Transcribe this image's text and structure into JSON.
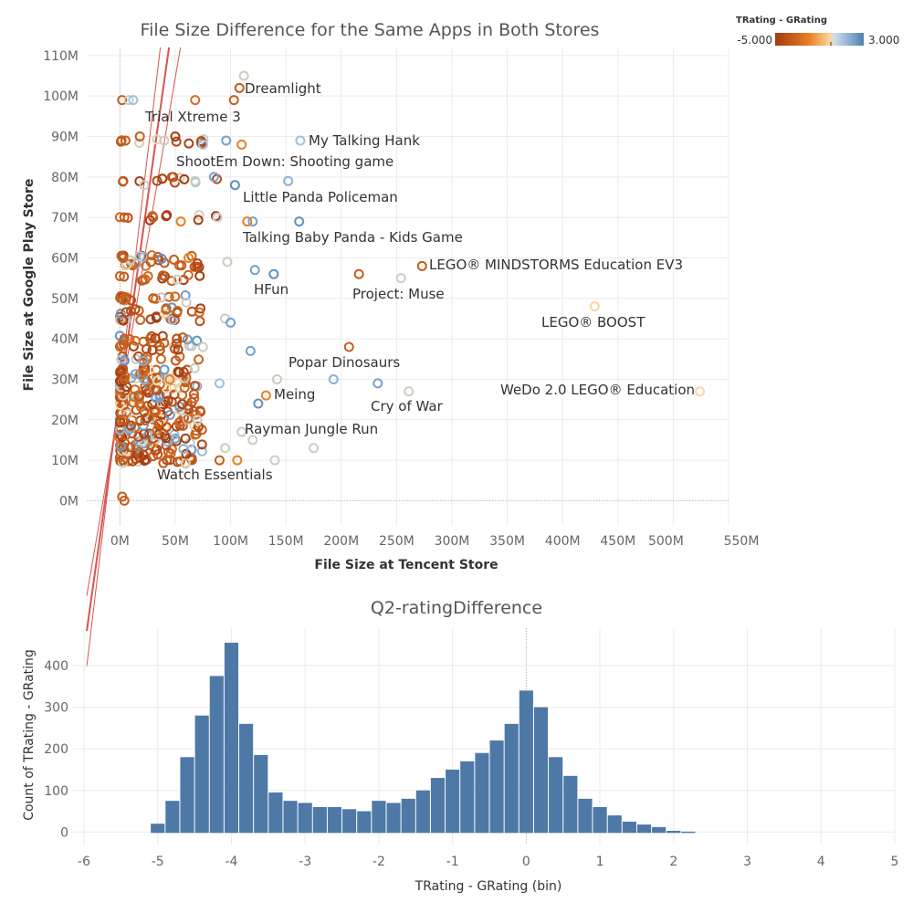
{
  "chart_data": [
    {
      "type": "scatter",
      "title": "File Size Difference for the Same Apps in Both Stores",
      "xlabel": "File Size at Tencent Store",
      "ylabel": "File Size at Google Play Store",
      "xlim": [
        -30,
        550
      ],
      "ylim": [
        -6,
        112
      ],
      "x_ticks": [
        "0M",
        "50M",
        "100M",
        "150M",
        "200M",
        "250M",
        "300M",
        "350M",
        "400M",
        "450M",
        "500M",
        "550M"
      ],
      "x_tick_values": [
        0,
        50,
        100,
        150,
        200,
        250,
        300,
        350,
        400,
        450,
        500,
        550
      ],
      "y_ticks": [
        "0M",
        "10M",
        "20M",
        "30M",
        "40M",
        "50M",
        "60M",
        "70M",
        "80M",
        "90M",
        "100M",
        "110M"
      ],
      "y_tick_values": [
        0,
        10,
        20,
        30,
        40,
        50,
        60,
        70,
        80,
        90,
        100,
        110
      ],
      "grid": true,
      "legend": {
        "title": "TRating - GRating",
        "min_label": "-5.000",
        "max_label": "3.000",
        "min": -5,
        "max": 3,
        "colors": [
          "#a33a12",
          "#e87f24",
          "#fbd6a0",
          "#9dc3e2",
          "#4f7fb1"
        ],
        "placement": "top-right"
      },
      "trend_line": {
        "slope": 1.94,
        "intercept": 26
      },
      "trend_band": {
        "upper": {
          "slope": 2.3,
          "intercept": 28
        },
        "lower": {
          "slope": 1.6,
          "intercept": 24.5
        }
      },
      "annotations": [
        {
          "label": "Dreamlight",
          "x": 108,
          "y": 102,
          "d": -4
        },
        {
          "label": "Trial Xtreme 3",
          "x": 68,
          "y": 99,
          "d": -3.5
        },
        {
          "label": "My Talking Hank",
          "x": 163,
          "y": 89,
          "d": 1
        },
        {
          "label": "ShootEm Down: Shooting game",
          "x": 47,
          "y": 80,
          "d": -4
        },
        {
          "label": "Little Panda Policeman",
          "x": 104,
          "y": 78,
          "d": 2.5
        },
        {
          "label": "Talking Baby Panda - Kids Game",
          "x": 162,
          "y": 69,
          "d": 2.5
        },
        {
          "label": "LEGO® MINDSTORMS Education EV3",
          "x": 273,
          "y": 58,
          "d": -4
        },
        {
          "label": "HFun",
          "x": 139,
          "y": 56,
          "d": 2.5
        },
        {
          "label": "Project: Muse",
          "x": 216,
          "y": 56,
          "d": -4
        },
        {
          "label": "Project: Muse",
          "x": 254,
          "y": 55,
          "d": 0
        },
        {
          "label": "LEGO® BOOST",
          "x": 429,
          "y": 48,
          "d": -1
        },
        {
          "label": "Popar Dinosaurs",
          "x": 207,
          "y": 38,
          "d": -4
        },
        {
          "label": "Meing",
          "x": 132,
          "y": 26,
          "d": -3
        },
        {
          "label": "Cry of War",
          "x": 261,
          "y": 27,
          "d": 0
        },
        {
          "label": "WeDo 2.0 LEGO® Education",
          "x": 524,
          "y": 27,
          "d": -1
        },
        {
          "label": "Rayman Jungle Run",
          "x": 110,
          "y": 17,
          "d": 0
        },
        {
          "label": "Watch Essentials",
          "x": 106,
          "y": 10,
          "d": -3
        }
      ],
      "annotation_labels": [
        {
          "text": "Dreamlight"
        },
        {
          "text": "Trial Xtreme 3"
        },
        {
          "text": "My Talking Hank"
        },
        {
          "text": "ShootEm Down: Shooting game"
        },
        {
          "text": "Little Panda Policeman"
        },
        {
          "text": "Talking Baby Panda - Kids Game"
        },
        {
          "text": "LEGO® MINDSTORMS Education EV3"
        },
        {
          "text": "HFun"
        },
        {
          "text": "Project: Muse"
        },
        {
          "text": "LEGO® BOOST"
        },
        {
          "text": "Popar Dinosaurs"
        },
        {
          "text": "Meing"
        },
        {
          "text": "Cry of War"
        },
        {
          "text": "WeDo 2.0 LEGO® Education"
        },
        {
          "text": "Rayman Jungle Run"
        },
        {
          "text": "Watch Essentials"
        }
      ],
      "extra_points": [
        {
          "x": 2,
          "y": 99,
          "d": -4
        },
        {
          "x": 8,
          "y": 99,
          "d": 0
        },
        {
          "x": 12,
          "y": 99,
          "d": 1
        },
        {
          "x": 103,
          "y": 99,
          "d": -4
        },
        {
          "x": 112,
          "y": 105,
          "d": 0
        },
        {
          "x": 5,
          "y": 89,
          "d": -4
        },
        {
          "x": 18,
          "y": 90,
          "d": -4
        },
        {
          "x": 40,
          "y": 89,
          "d": 0
        },
        {
          "x": 50,
          "y": 90,
          "d": -5
        },
        {
          "x": 75,
          "y": 88,
          "d": 1
        },
        {
          "x": 96,
          "y": 89,
          "d": 2
        },
        {
          "x": 110,
          "y": 88,
          "d": -3
        },
        {
          "x": 3,
          "y": 79,
          "d": -4
        },
        {
          "x": 22,
          "y": 78,
          "d": 0
        },
        {
          "x": 48,
          "y": 80,
          "d": -5
        },
        {
          "x": 68,
          "y": 79,
          "d": 0
        },
        {
          "x": 85,
          "y": 80,
          "d": 2
        },
        {
          "x": 152,
          "y": 79,
          "d": 1.5
        },
        {
          "x": 4,
          "y": 70,
          "d": -4
        },
        {
          "x": 30,
          "y": 70,
          "d": -4
        },
        {
          "x": 55,
          "y": 69,
          "d": -3
        },
        {
          "x": 88,
          "y": 70,
          "d": 0
        },
        {
          "x": 115,
          "y": 69,
          "d": -3
        },
        {
          "x": 120,
          "y": 69,
          "d": 2
        },
        {
          "x": 3,
          "y": 60,
          "d": -4
        },
        {
          "x": 28,
          "y": 59,
          "d": -4
        },
        {
          "x": 62,
          "y": 60,
          "d": -3
        },
        {
          "x": 97,
          "y": 59,
          "d": 0
        },
        {
          "x": 122,
          "y": 57,
          "d": 2
        },
        {
          "x": 5,
          "y": 50,
          "d": -4
        },
        {
          "x": 30,
          "y": 50,
          "d": -4
        },
        {
          "x": 60,
          "y": 49,
          "d": 0
        },
        {
          "x": 95,
          "y": 45,
          "d": 0
        },
        {
          "x": 100,
          "y": 44,
          "d": 2
        },
        {
          "x": 4,
          "y": 40,
          "d": -4
        },
        {
          "x": 40,
          "y": 39,
          "d": -4
        },
        {
          "x": 75,
          "y": 38,
          "d": 0
        },
        {
          "x": 118,
          "y": 37,
          "d": 2
        },
        {
          "x": 193,
          "y": 30,
          "d": 1.5
        },
        {
          "x": 4,
          "y": 30,
          "d": -4
        },
        {
          "x": 45,
          "y": 30,
          "d": -3
        },
        {
          "x": 90,
          "y": 29,
          "d": 1
        },
        {
          "x": 125,
          "y": 24,
          "d": 2.5
        },
        {
          "x": 142,
          "y": 30,
          "d": 0
        },
        {
          "x": 233,
          "y": 29,
          "d": 2
        },
        {
          "x": 3,
          "y": 20,
          "d": -4
        },
        {
          "x": 35,
          "y": 19,
          "d": -4
        },
        {
          "x": 70,
          "y": 20,
          "d": 0
        },
        {
          "x": 95,
          "y": 13,
          "d": 0
        },
        {
          "x": 120,
          "y": 15,
          "d": 0
        },
        {
          "x": 175,
          "y": 13,
          "d": 0
        },
        {
          "x": 3,
          "y": 10,
          "d": -4
        },
        {
          "x": 30,
          "y": 11,
          "d": -4
        },
        {
          "x": 90,
          "y": 10,
          "d": -4
        },
        {
          "x": 140,
          "y": 10,
          "d": 0
        },
        {
          "x": 2,
          "y": 1,
          "d": -4
        },
        {
          "x": 4,
          "y": 0,
          "d": -4
        }
      ]
    },
    {
      "type": "bar",
      "title": "Q2-ratingDifference",
      "xlabel": "TRating - GRating (bin)",
      "ylabel": "Count of TRating - GRating",
      "bin_start": -5.1,
      "bin_width": 0.2,
      "values": [
        20,
        75,
        180,
        280,
        375,
        455,
        260,
        185,
        95,
        75,
        70,
        60,
        60,
        55,
        50,
        75,
        70,
        80,
        100,
        130,
        150,
        170,
        190,
        220,
        260,
        340,
        300,
        180,
        135,
        80,
        60,
        40,
        25,
        18,
        12,
        3,
        1
      ],
      "color": "#4e79a7",
      "xlim": [
        -6,
        5
      ],
      "ylim": [
        -30,
        490
      ],
      "x_ticks": [
        "-6",
        "-5",
        "-4",
        "-3",
        "-2",
        "-1",
        "0",
        "1",
        "2",
        "3",
        "4",
        "5"
      ],
      "x_tick_values": [
        -6,
        -5,
        -4,
        -3,
        -2,
        -1,
        0,
        1,
        2,
        3,
        4,
        5
      ],
      "y_ticks": [
        "0",
        "100",
        "200",
        "300",
        "400"
      ],
      "y_tick_values": [
        0,
        100,
        200,
        300,
        400
      ],
      "grid": true
    }
  ]
}
